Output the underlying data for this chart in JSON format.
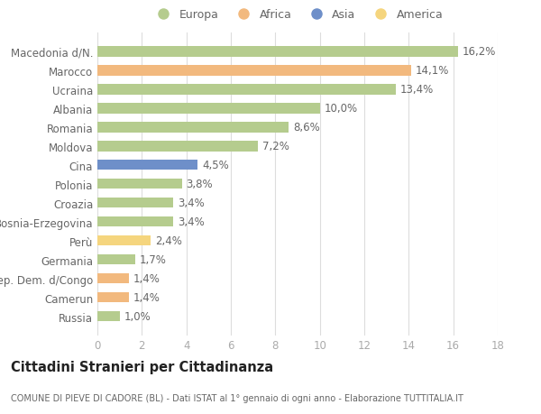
{
  "countries": [
    "Macedonia d/N.",
    "Marocco",
    "Ucraina",
    "Albania",
    "Romania",
    "Moldova",
    "Cina",
    "Polonia",
    "Croazia",
    "Bosnia-Erzegovina",
    "Perù",
    "Germania",
    "Rep. Dem. d/Congo",
    "Camerun",
    "Russia"
  ],
  "values": [
    16.2,
    14.1,
    13.4,
    10.0,
    8.6,
    7.2,
    4.5,
    3.8,
    3.4,
    3.4,
    2.4,
    1.7,
    1.4,
    1.4,
    1.0
  ],
  "continents": [
    "Europa",
    "Africa",
    "Europa",
    "Europa",
    "Europa",
    "Europa",
    "Asia",
    "Europa",
    "Europa",
    "Europa",
    "America",
    "Europa",
    "Africa",
    "Africa",
    "Europa"
  ],
  "colors": {
    "Europa": "#b5cc8e",
    "Africa": "#f2b97e",
    "Asia": "#6e8fc9",
    "America": "#f5d57e"
  },
  "xlim": [
    0,
    18
  ],
  "xticks": [
    0,
    2,
    4,
    6,
    8,
    10,
    12,
    14,
    16,
    18
  ],
  "title": "Cittadini Stranieri per Cittadinanza",
  "subtitle": "COMUNE DI PIEVE DI CADORE (BL) - Dati ISTAT al 1° gennaio di ogni anno - Elaborazione TUTTITALIA.IT",
  "background_color": "#ffffff",
  "bar_height": 0.55,
  "label_fontsize": 8.5,
  "value_fontsize": 8.5,
  "title_fontsize": 10.5,
  "subtitle_fontsize": 7.0,
  "legend_order": [
    "Europa",
    "Africa",
    "Asia",
    "America"
  ]
}
